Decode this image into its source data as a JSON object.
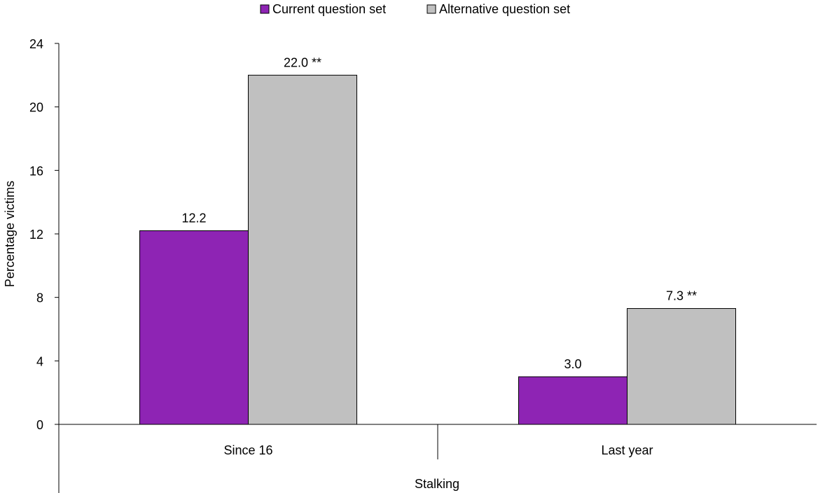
{
  "chart_data": {
    "type": "bar",
    "group_label": "Stalking",
    "categories": [
      "Since 16",
      "Last year"
    ],
    "series": [
      {
        "name": "Current question set",
        "color": "#8e24b4",
        "values": [
          12.2,
          3.0
        ],
        "labels": [
          "12.2",
          "3.0"
        ]
      },
      {
        "name": "Alternative question set",
        "color": "#c0c0c0",
        "values": [
          22.0,
          7.3
        ],
        "labels": [
          "22.0 **",
          "7.3 **"
        ]
      }
    ],
    "ylabel": "Percentage victims",
    "ylim": [
      0,
      24
    ],
    "yticks": [
      0,
      4,
      8,
      12,
      16,
      20,
      24
    ],
    "grid": false,
    "legend_position": "top"
  }
}
